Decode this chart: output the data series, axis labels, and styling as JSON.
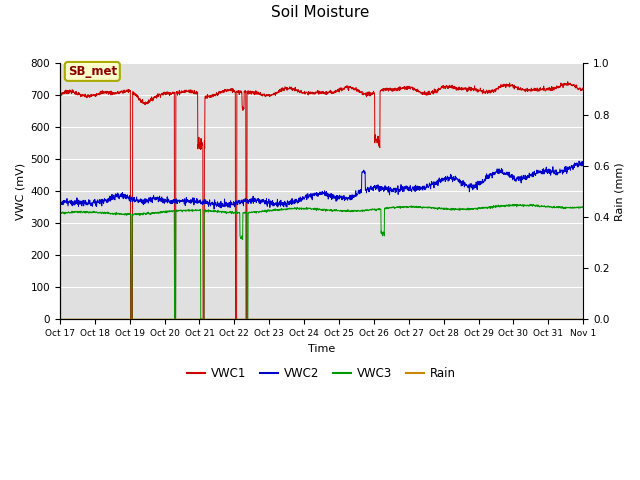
{
  "title": "Soil Moisture",
  "xlabel": "Time",
  "ylabel_left": "VWC (mV)",
  "ylabel_right": "Rain (mm)",
  "ylim_left": [
    0,
    800
  ],
  "ylim_right": [
    0.0,
    1.0
  ],
  "fig_bg_color": "#ffffff",
  "plot_bg_color": "#e0e0e0",
  "annotation_text": "SB_met",
  "annotation_bg": "#ffffcc",
  "annotation_border": "#aaaa00",
  "x_tick_labels": [
    "Oct 17",
    "Oct 18",
    "Oct 19",
    "Oct 20",
    "Oct 21",
    "Oct 22",
    "Oct 23",
    "Oct 24",
    "Oct 25",
    "Oct 26",
    "Oct 27",
    "Oct 28",
    "Oct 29",
    "Oct 30",
    "Oct 31",
    "Nov 1"
  ],
  "vwc1_color": "#cc0000",
  "vwc2_color": "#0000cc",
  "vwc3_color": "#009900",
  "rain_color": "#cc8800",
  "title_fontsize": 11,
  "grid_color": "#ffffff",
  "yticks_left": [
    0,
    100,
    200,
    300,
    400,
    500,
    600,
    700,
    800
  ],
  "yticks_right": [
    0.0,
    0.2,
    0.4,
    0.6,
    0.8,
    1.0
  ]
}
